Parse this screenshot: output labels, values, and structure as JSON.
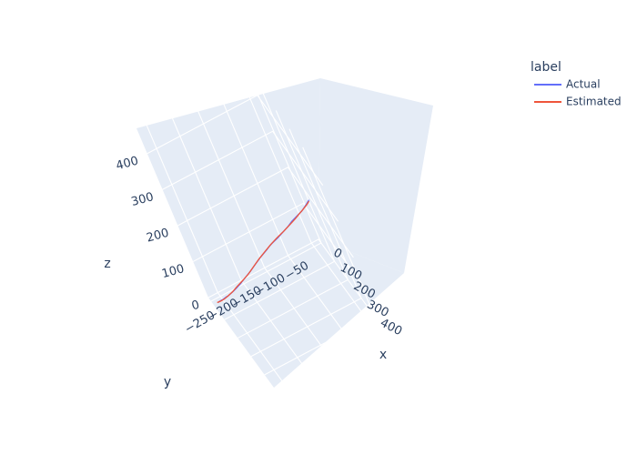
{
  "chart_data": {
    "type": "line3d",
    "legend": {
      "title": "label",
      "placement": "top-right"
    },
    "axes": {
      "x": {
        "label": "x",
        "ticks": [
          "0",
          "100",
          "200",
          "300",
          "400"
        ],
        "range": [
          -20,
          470
        ]
      },
      "y": {
        "label": "y",
        "ticks": [
          "−250",
          "−200",
          "−150",
          "−100",
          "−50"
        ],
        "range": [
          -270,
          -35
        ]
      },
      "z": {
        "label": "z",
        "ticks": [
          "0",
          "100",
          "200",
          "300",
          "400"
        ],
        "range": [
          0,
          470
        ]
      }
    },
    "series": [
      {
        "name": "Actual",
        "color": "#636efa",
        "points": [
          [
            20,
            -260,
            0
          ],
          [
            25,
            -258,
            4
          ],
          [
            30,
            -256,
            7
          ],
          [
            28,
            -257,
            6
          ],
          [
            42,
            -252,
            14
          ],
          [
            56,
            -245,
            24
          ],
          [
            60,
            -243,
            26
          ],
          [
            82,
            -232,
            43
          ],
          [
            95,
            -226,
            54
          ],
          [
            110,
            -218,
            67
          ],
          [
            130,
            -208,
            86
          ],
          [
            160,
            -195,
            113
          ],
          [
            175,
            -189,
            127
          ],
          [
            190,
            -183,
            141
          ],
          [
            215,
            -173,
            164
          ],
          [
            250,
            -158,
            195
          ],
          [
            262,
            -153,
            206
          ],
          [
            275,
            -147,
            217
          ],
          [
            300,
            -136,
            237
          ],
          [
            330,
            -124,
            262
          ],
          [
            350,
            -115,
            279
          ],
          [
            370,
            -106,
            298
          ],
          [
            395,
            -96,
            318
          ],
          [
            420,
            -86,
            338
          ],
          [
            445,
            -76,
            362
          ],
          [
            455,
            -72,
            372
          ],
          [
            462,
            -69,
            379
          ]
        ]
      },
      {
        "name": "Estimated",
        "color": "#ef553b",
        "points": [
          [
            18,
            -262,
            0
          ],
          [
            30,
            -256,
            6
          ],
          [
            45,
            -250,
            15
          ],
          [
            60,
            -243,
            26
          ],
          [
            80,
            -233,
            42
          ],
          [
            100,
            -223,
            60
          ],
          [
            125,
            -210,
            82
          ],
          [
            150,
            -199,
            104
          ],
          [
            180,
            -187,
            132
          ],
          [
            210,
            -175,
            160
          ],
          [
            240,
            -162,
            187
          ],
          [
            270,
            -150,
            213
          ],
          [
            300,
            -137,
            238
          ],
          [
            330,
            -124,
            262
          ],
          [
            360,
            -111,
            287
          ],
          [
            385,
            -100,
            308
          ],
          [
            410,
            -90,
            330
          ],
          [
            430,
            -82,
            347
          ],
          [
            448,
            -75,
            363
          ],
          [
            460,
            -70,
            375
          ]
        ]
      }
    ]
  }
}
